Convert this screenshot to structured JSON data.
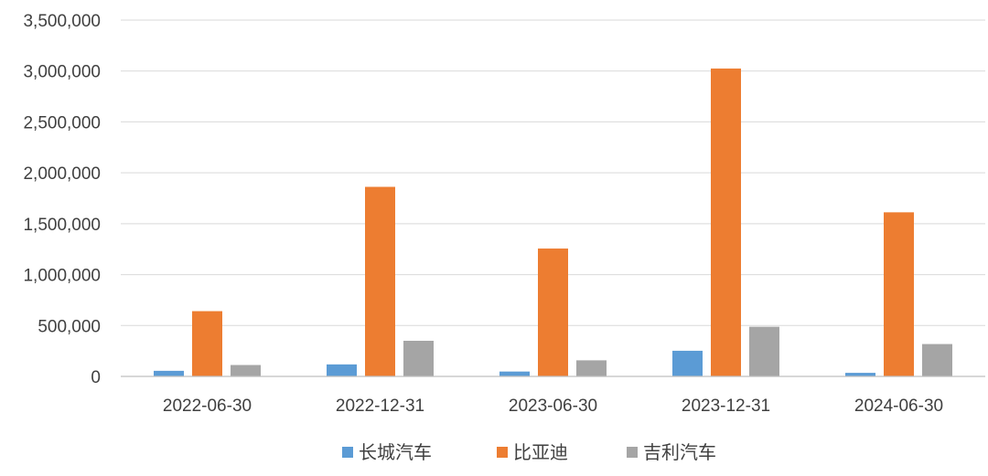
{
  "chart_data": {
    "type": "bar",
    "title": "",
    "xlabel": "",
    "ylabel": "",
    "categories": [
      "2022-06-30",
      "2022-12-31",
      "2023-06-30",
      "2023-12-31",
      "2024-06-30"
    ],
    "series": [
      {
        "name": "长城汽车",
        "color": "#5b9bd5",
        "values": [
          55000,
          118000,
          48000,
          252000,
          35000
        ]
      },
      {
        "name": "比亚迪",
        "color": "#ed7d31",
        "values": [
          641000,
          1862000,
          1256000,
          3024000,
          1612000
        ]
      },
      {
        "name": "吉利汽车",
        "color": "#a5a5a5",
        "values": [
          112000,
          350000,
          158000,
          488000,
          318000
        ]
      }
    ],
    "ylim": [
      0,
      3500000
    ],
    "yticks": [
      0,
      500000,
      1000000,
      1500000,
      2000000,
      2500000,
      3000000,
      3500000
    ],
    "ytick_labels": [
      "0",
      "500,000",
      "1,000,000",
      "1,500,000",
      "2,000,000",
      "2,500,000",
      "3,000,000",
      "3,500,000"
    ],
    "grid": true,
    "legend": "bottom-center"
  }
}
